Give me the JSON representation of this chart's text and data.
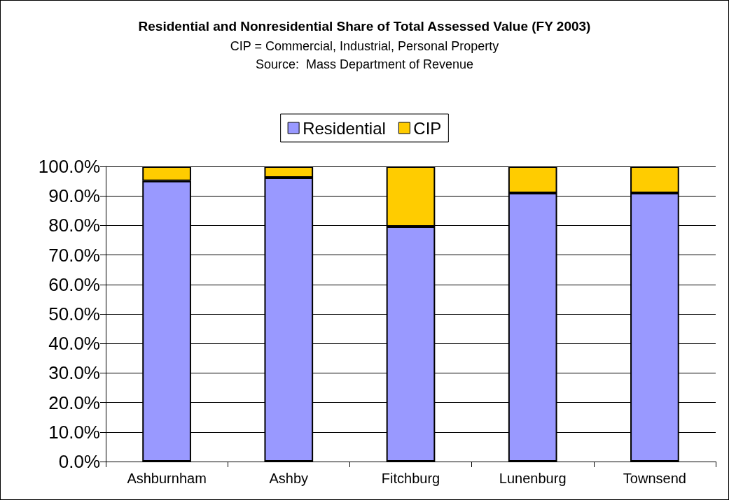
{
  "chart_data": {
    "type": "bar",
    "title": "Residential and Nonresidential Share of Total Assessed Value (FY 2003)",
    "subtitle": "CIP = Commercial, Industrial, Personal Property",
    "annotations": [
      "Source:  Mass Department of Revenue"
    ],
    "categories": [
      "Ashburnham",
      "Ashby",
      "Fitchburg",
      "Lunenburg",
      "Townsend"
    ],
    "stacked": true,
    "series": [
      {
        "name": "Residential",
        "color": "#9999ff",
        "values": [
          95.1,
          96.2,
          79.6,
          91.0,
          91.0
        ]
      },
      {
        "name": "CIP",
        "color": "#ffcc00",
        "values": [
          4.9,
          3.8,
          20.4,
          9.0,
          9.0
        ]
      }
    ],
    "ylim": [
      0,
      100
    ],
    "yticks": [
      {
        "value": 0,
        "label": "0.0%"
      },
      {
        "value": 10,
        "label": "10.0%"
      },
      {
        "value": 20,
        "label": "20.0%"
      },
      {
        "value": 30,
        "label": "30.0%"
      },
      {
        "value": 40,
        "label": "40.0%"
      },
      {
        "value": 50,
        "label": "50.0%"
      },
      {
        "value": 60,
        "label": "60.0%"
      },
      {
        "value": 70,
        "label": "70.0%"
      },
      {
        "value": 80,
        "label": "80.0%"
      },
      {
        "value": 90,
        "label": "90.0%"
      },
      {
        "value": 100,
        "label": "100.0%"
      }
    ],
    "grid": "y",
    "legend": "top"
  }
}
